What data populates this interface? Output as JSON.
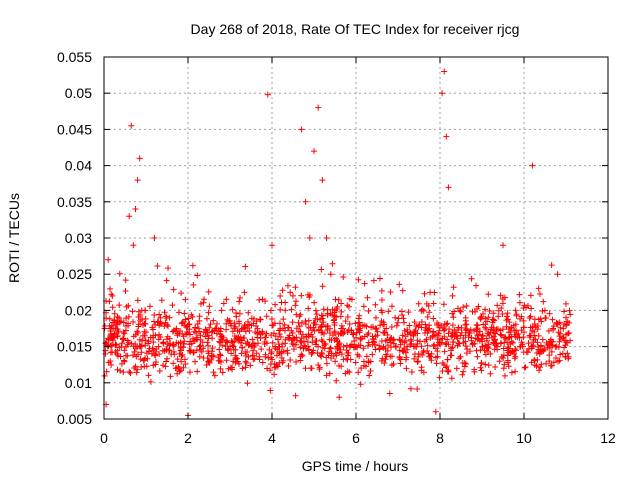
{
  "chart_data": {
    "type": "scatter",
    "title": "Day 268 of 2018, Rate Of TEC Index for receiver rjcg",
    "xlabel": "GPS time / hours",
    "ylabel": "ROTI / TECUs",
    "xlim": [
      0,
      12
    ],
    "ylim": [
      0.005,
      0.055
    ],
    "xticks": [
      0,
      2,
      4,
      6,
      8,
      10,
      12
    ],
    "xtick_labels": [
      "0",
      "2",
      "4",
      "6",
      "8",
      "10",
      "12"
    ],
    "yticks": [
      0.005,
      0.01,
      0.015,
      0.02,
      0.025,
      0.03,
      0.035,
      0.04,
      0.045,
      0.05,
      0.055
    ],
    "ytick_labels": [
      "0.005",
      "0.01",
      "0.015",
      "0.02",
      "0.025",
      "0.03",
      "0.035",
      "0.04",
      "0.045",
      "0.05",
      "0.055"
    ],
    "grid": true,
    "marker": "+",
    "color": "#ff0000",
    "series": [
      {
        "name": "ROTI",
        "x_range": [
          0,
          11.1
        ],
        "x": [
          0.05,
          0.1,
          0.15,
          0.2,
          0.3,
          0.45,
          0.6,
          0.65,
          0.7,
          0.75,
          0.8,
          0.85,
          0.9,
          1.0,
          1.2,
          1.3,
          1.5,
          1.8,
          2.0,
          2.2,
          2.5,
          2.8,
          3.0,
          3.3,
          3.6,
          3.9,
          4.0,
          4.3,
          4.5,
          4.7,
          4.8,
          4.9,
          5.0,
          5.1,
          5.2,
          5.3,
          5.4,
          5.5,
          5.6,
          5.8,
          6.0,
          6.3,
          6.6,
          6.9,
          7.2,
          7.5,
          7.8,
          7.9,
          8.0,
          8.05,
          8.1,
          8.15,
          8.2,
          8.3,
          8.4,
          8.6,
          8.9,
          9.2,
          9.5,
          9.8,
          10.0,
          10.2,
          10.4,
          10.6,
          10.8,
          11.0
        ],
        "y": [
          0.007,
          0.027,
          0.013,
          0.022,
          0.018,
          0.016,
          0.033,
          0.0455,
          0.029,
          0.034,
          0.038,
          0.041,
          0.02,
          0.017,
          0.03,
          0.015,
          0.018,
          0.014,
          0.0055,
          0.016,
          0.013,
          0.02,
          0.015,
          0.012,
          0.017,
          0.0498,
          0.029,
          0.018,
          0.022,
          0.045,
          0.035,
          0.03,
          0.042,
          0.048,
          0.038,
          0.03,
          0.025,
          0.02,
          0.008,
          0.017,
          0.015,
          0.013,
          0.02,
          0.016,
          0.012,
          0.018,
          0.014,
          0.006,
          0.016,
          0.05,
          0.053,
          0.044,
          0.037,
          0.022,
          0.012,
          0.018,
          0.016,
          0.014,
          0.029,
          0.02,
          0.017,
          0.04,
          0.015,
          0.013,
          0.025,
          0.019
        ]
      }
    ]
  }
}
